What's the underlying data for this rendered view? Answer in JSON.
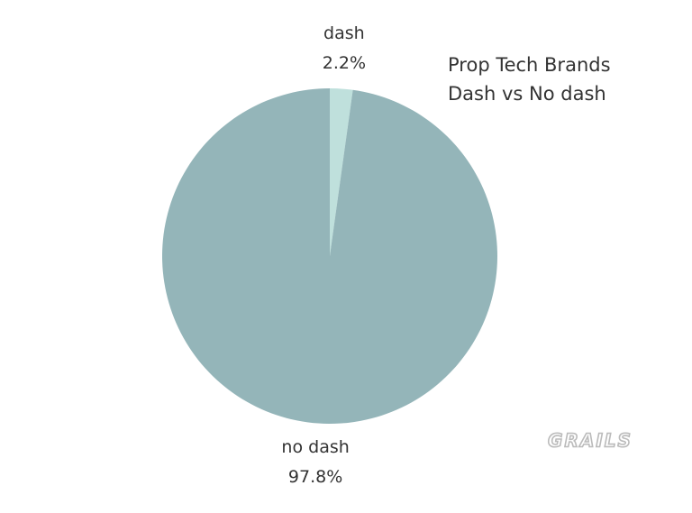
{
  "chart_data": {
    "type": "pie",
    "title": "Prop Tech Brands",
    "subtitle": "Dash vs No dash",
    "categories": [
      "dash",
      "no dash"
    ],
    "values": [
      2.2,
      97.8
    ],
    "value_labels": [
      "2.2%",
      "97.8%"
    ],
    "colors": [
      "#bfe0dc",
      "#94b5b9"
    ],
    "watermark": "GRAILS"
  }
}
